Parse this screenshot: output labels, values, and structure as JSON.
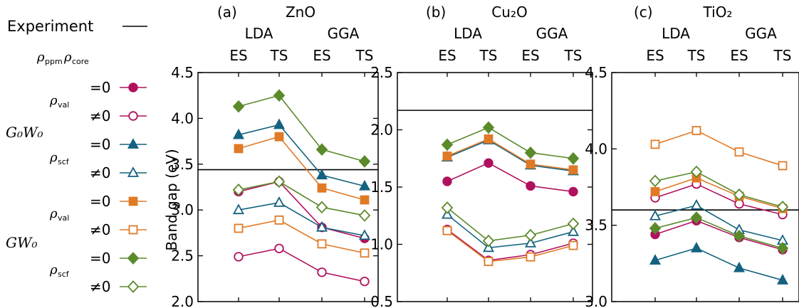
{
  "figure": {
    "ylabel": "Band gap (eV)",
    "legend": {
      "experiment_label": "Experiment",
      "rho_ppm": "ppm",
      "rho_core": "core",
      "rho_val": "val",
      "rho_scf": "scf",
      "eq_zero": "=0",
      "neq_zero": "≠0",
      "g0w0": "G₀W₀",
      "gw0": "GW₀"
    }
  },
  "colors": {
    "magenta": "#b0115e",
    "teal": "#14627f",
    "orange": "#e07a27",
    "green": "#5b8a2b",
    "black": "#000000"
  },
  "chart_data": [
    {
      "type": "line",
      "panel_label": "(a)",
      "title": "ZnO",
      "group_labels": [
        "LDA",
        "GGA"
      ],
      "categories": [
        "ES",
        "TS",
        "ES",
        "TS"
      ],
      "ylabel": "Band gap (eV)",
      "ylim": [
        2.0,
        4.5
      ],
      "yticks": [
        "2.0",
        "2.5",
        "3.0",
        "3.5",
        "4.0",
        "4.5"
      ],
      "experiment": 3.44,
      "series": [
        {
          "method": "G0W0",
          "rho_core": "val",
          "setting": "=0",
          "marker": "circle",
          "filled": true,
          "color": "magenta",
          "values": [
            3.2,
            3.31,
            2.81,
            2.69
          ]
        },
        {
          "method": "G0W0",
          "rho_core": "val",
          "setting": "≠0",
          "marker": "circle",
          "filled": false,
          "color": "magenta",
          "values": [
            2.49,
            2.58,
            2.32,
            2.22
          ]
        },
        {
          "method": "G0W0",
          "rho_core": "scf",
          "setting": "=0",
          "marker": "triangle",
          "filled": true,
          "color": "teal",
          "values": [
            3.82,
            3.93,
            3.38,
            3.26
          ]
        },
        {
          "method": "G0W0",
          "rho_core": "scf",
          "setting": "≠0",
          "marker": "triangle",
          "filled": false,
          "color": "teal",
          "values": [
            3.0,
            3.08,
            2.81,
            2.72
          ]
        },
        {
          "method": "GW0",
          "rho_core": "val",
          "setting": "=0",
          "marker": "square",
          "filled": true,
          "color": "orange",
          "values": [
            3.67,
            3.8,
            3.24,
            3.11
          ]
        },
        {
          "method": "GW0",
          "rho_core": "val",
          "setting": "≠0",
          "marker": "square",
          "filled": false,
          "color": "orange",
          "values": [
            2.8,
            2.89,
            2.63,
            2.53
          ]
        },
        {
          "method": "GW0",
          "rho_core": "scf",
          "setting": "=0",
          "marker": "diamond",
          "filled": true,
          "color": "green",
          "values": [
            4.13,
            4.25,
            3.66,
            3.53
          ]
        },
        {
          "method": "GW0",
          "rho_core": "scf",
          "setting": "≠0",
          "marker": "diamond",
          "filled": false,
          "color": "green",
          "values": [
            3.22,
            3.31,
            3.03,
            2.94
          ]
        }
      ]
    },
    {
      "type": "line",
      "panel_label": "(b)",
      "title": "Cu₂O",
      "group_labels": [
        "LDA",
        "GGA"
      ],
      "categories": [
        "ES",
        "TS",
        "ES",
        "TS"
      ],
      "ylim": [
        0.5,
        2.5
      ],
      "yticks": [
        "0.5",
        "1.0",
        "1.5",
        "2.0",
        "2.5"
      ],
      "experiment": 2.17,
      "series": [
        {
          "method": "G0W0",
          "rho_core": "val",
          "setting": "=0",
          "marker": "circle",
          "filled": true,
          "color": "magenta",
          "values": [
            1.55,
            1.71,
            1.51,
            1.46
          ]
        },
        {
          "method": "G0W0",
          "rho_core": "val",
          "setting": "≠0",
          "marker": "circle",
          "filled": false,
          "color": "magenta",
          "values": [
            1.13,
            0.86,
            0.91,
            1.01
          ]
        },
        {
          "method": "G0W0",
          "rho_core": "scf",
          "setting": "=0",
          "marker": "triangle",
          "filled": true,
          "color": "teal",
          "values": [
            1.76,
            1.91,
            1.69,
            1.64
          ]
        },
        {
          "method": "G0W0",
          "rho_core": "scf",
          "setting": "≠0",
          "marker": "triangle",
          "filled": false,
          "color": "teal",
          "values": [
            1.26,
            0.97,
            1.01,
            1.11
          ]
        },
        {
          "method": "GW0",
          "rho_core": "val",
          "setting": "=0",
          "marker": "square",
          "filled": true,
          "color": "orange",
          "values": [
            1.77,
            1.92,
            1.7,
            1.65
          ]
        },
        {
          "method": "GW0",
          "rho_core": "val",
          "setting": "≠0",
          "marker": "square",
          "filled": false,
          "color": "orange",
          "values": [
            1.12,
            0.85,
            0.89,
            0.99
          ]
        },
        {
          "method": "GW0",
          "rho_core": "scf",
          "setting": "=0",
          "marker": "diamond",
          "filled": true,
          "color": "green",
          "values": [
            1.87,
            2.02,
            1.8,
            1.75
          ]
        },
        {
          "method": "GW0",
          "rho_core": "scf",
          "setting": "≠0",
          "marker": "diamond",
          "filled": false,
          "color": "green",
          "values": [
            1.32,
            1.03,
            1.08,
            1.18
          ]
        }
      ]
    },
    {
      "type": "line",
      "panel_label": "(c)",
      "title": "TiO₂",
      "group_labels": [
        "LDA",
        "GGA"
      ],
      "categories": [
        "ES",
        "TS",
        "ES",
        "TS"
      ],
      "ylim": [
        3.0,
        4.5
      ],
      "yticks": [
        "3.0",
        "3.5",
        "4.0",
        "4.5"
      ],
      "experiment": 3.6,
      "series": [
        {
          "method": "G0W0",
          "rho_core": "val",
          "setting": "=0",
          "marker": "circle",
          "filled": true,
          "color": "magenta",
          "values": [
            3.44,
            3.53,
            3.42,
            3.34
          ]
        },
        {
          "method": "G0W0",
          "rho_core": "val",
          "setting": "≠0",
          "marker": "circle",
          "filled": false,
          "color": "magenta",
          "values": [
            3.68,
            3.77,
            3.64,
            3.57
          ]
        },
        {
          "method": "G0W0",
          "rho_core": "scf",
          "setting": "=0",
          "marker": "triangle",
          "filled": true,
          "color": "teal",
          "values": [
            3.27,
            3.35,
            3.22,
            3.14
          ]
        },
        {
          "method": "G0W0",
          "rho_core": "scf",
          "setting": "≠0",
          "marker": "triangle",
          "filled": false,
          "color": "teal",
          "values": [
            3.56,
            3.63,
            3.47,
            3.4
          ]
        },
        {
          "method": "GW0",
          "rho_core": "val",
          "setting": "=0",
          "marker": "square",
          "filled": true,
          "color": "orange",
          "values": [
            3.72,
            3.81,
            3.69,
            3.61
          ]
        },
        {
          "method": "GW0",
          "rho_core": "val",
          "setting": "≠0",
          "marker": "square",
          "filled": false,
          "color": "orange",
          "values": [
            4.03,
            4.12,
            3.98,
            3.89
          ]
        },
        {
          "method": "GW0",
          "rho_core": "scf",
          "setting": "=0",
          "marker": "diamond",
          "filled": true,
          "color": "green",
          "values": [
            3.48,
            3.55,
            3.43,
            3.35
          ]
        },
        {
          "method": "GW0",
          "rho_core": "scf",
          "setting": "≠0",
          "marker": "diamond",
          "filled": false,
          "color": "green",
          "values": [
            3.79,
            3.85,
            3.7,
            3.62
          ]
        }
      ]
    }
  ]
}
